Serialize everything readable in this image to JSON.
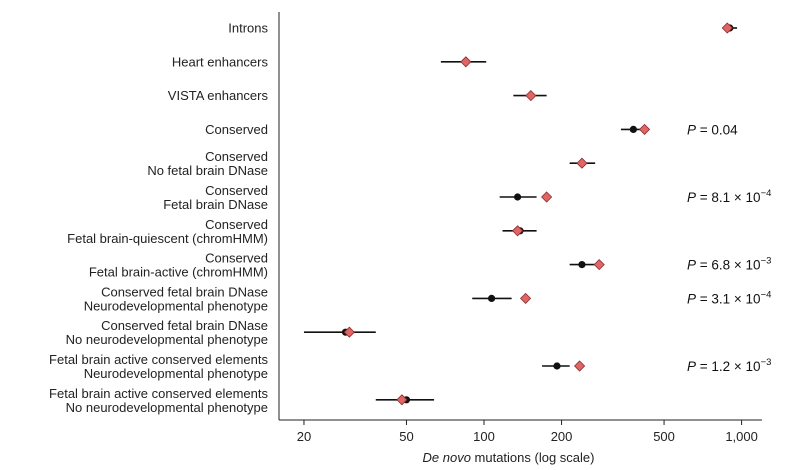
{
  "chart_data": {
    "type": "scatter",
    "xscale": "log",
    "xlim": [
      16,
      1200
    ],
    "xticks": [
      20,
      50,
      100,
      200,
      500,
      1000
    ],
    "xtick_labels": [
      "20",
      "50",
      "100",
      "200",
      "500",
      "1,000"
    ],
    "xlabel_italic": "De novo",
    "xlabel_rest": " mutations (log scale)",
    "grid": false,
    "series": [
      {
        "marker": "diamond",
        "color": "#e06666"
      },
      {
        "marker": "circle",
        "color": "#111111"
      }
    ],
    "categories": [
      {
        "label": [
          "Introns"
        ],
        "observed": 880,
        "expected": 900,
        "ci": [
          860,
          960
        ],
        "p": null
      },
      {
        "label": [
          "Heart enhancers"
        ],
        "observed": 85,
        "expected": null,
        "ci": [
          68,
          102
        ],
        "p": null
      },
      {
        "label": [
          "VISTA enhancers"
        ],
        "observed": 152,
        "expected": null,
        "ci": [
          130,
          175
        ],
        "p": null
      },
      {
        "label": [
          "Conserved"
        ],
        "observed": 420,
        "expected": 380,
        "ci": [
          340,
          410
        ],
        "p": "0.04"
      },
      {
        "label": [
          "Conserved",
          "No fetal brain DNase"
        ],
        "observed": 240,
        "expected": null,
        "ci": [
          215,
          270
        ],
        "p": null
      },
      {
        "label": [
          "Conserved",
          "Fetal brain DNase"
        ],
        "observed": 175,
        "expected": 135,
        "ci": [
          115,
          160
        ],
        "p": "8.1 × 10^-4"
      },
      {
        "label": [
          "Conserved",
          "Fetal brain-quiescent (chromHMM)"
        ],
        "observed": 135,
        "expected": 138,
        "ci": [
          118,
          160
        ],
        "p": null
      },
      {
        "label": [
          "Conserved",
          "Fetal brain-active (chromHMM)"
        ],
        "observed": 280,
        "expected": 240,
        "ci": [
          215,
          270
        ],
        "p": "6.8 × 10^-3"
      },
      {
        "label": [
          "Conserved fetal brain DNase",
          "Neurodevelopmental phenotype"
        ],
        "observed": 145,
        "expected": 107,
        "ci": [
          90,
          128
        ],
        "p": "3.1 × 10^-4"
      },
      {
        "label": [
          "Conserved fetal brain DNase",
          "No neurodevelopmental phenotype"
        ],
        "observed": 30,
        "expected": 29,
        "ci": [
          20,
          38
        ],
        "p": null
      },
      {
        "label": [
          "Fetal brain active conserved elements",
          "Neurodevelopmental phenotype"
        ],
        "observed": 235,
        "expected": 192,
        "ci": [
          168,
          215
        ],
        "p": "1.2 × 10^-3"
      },
      {
        "label": [
          "Fetal brain active conserved elements",
          "No neurodevelopmental phenotype"
        ],
        "observed": 48,
        "expected": 50,
        "ci": [
          38,
          64
        ],
        "p": null
      }
    ]
  }
}
